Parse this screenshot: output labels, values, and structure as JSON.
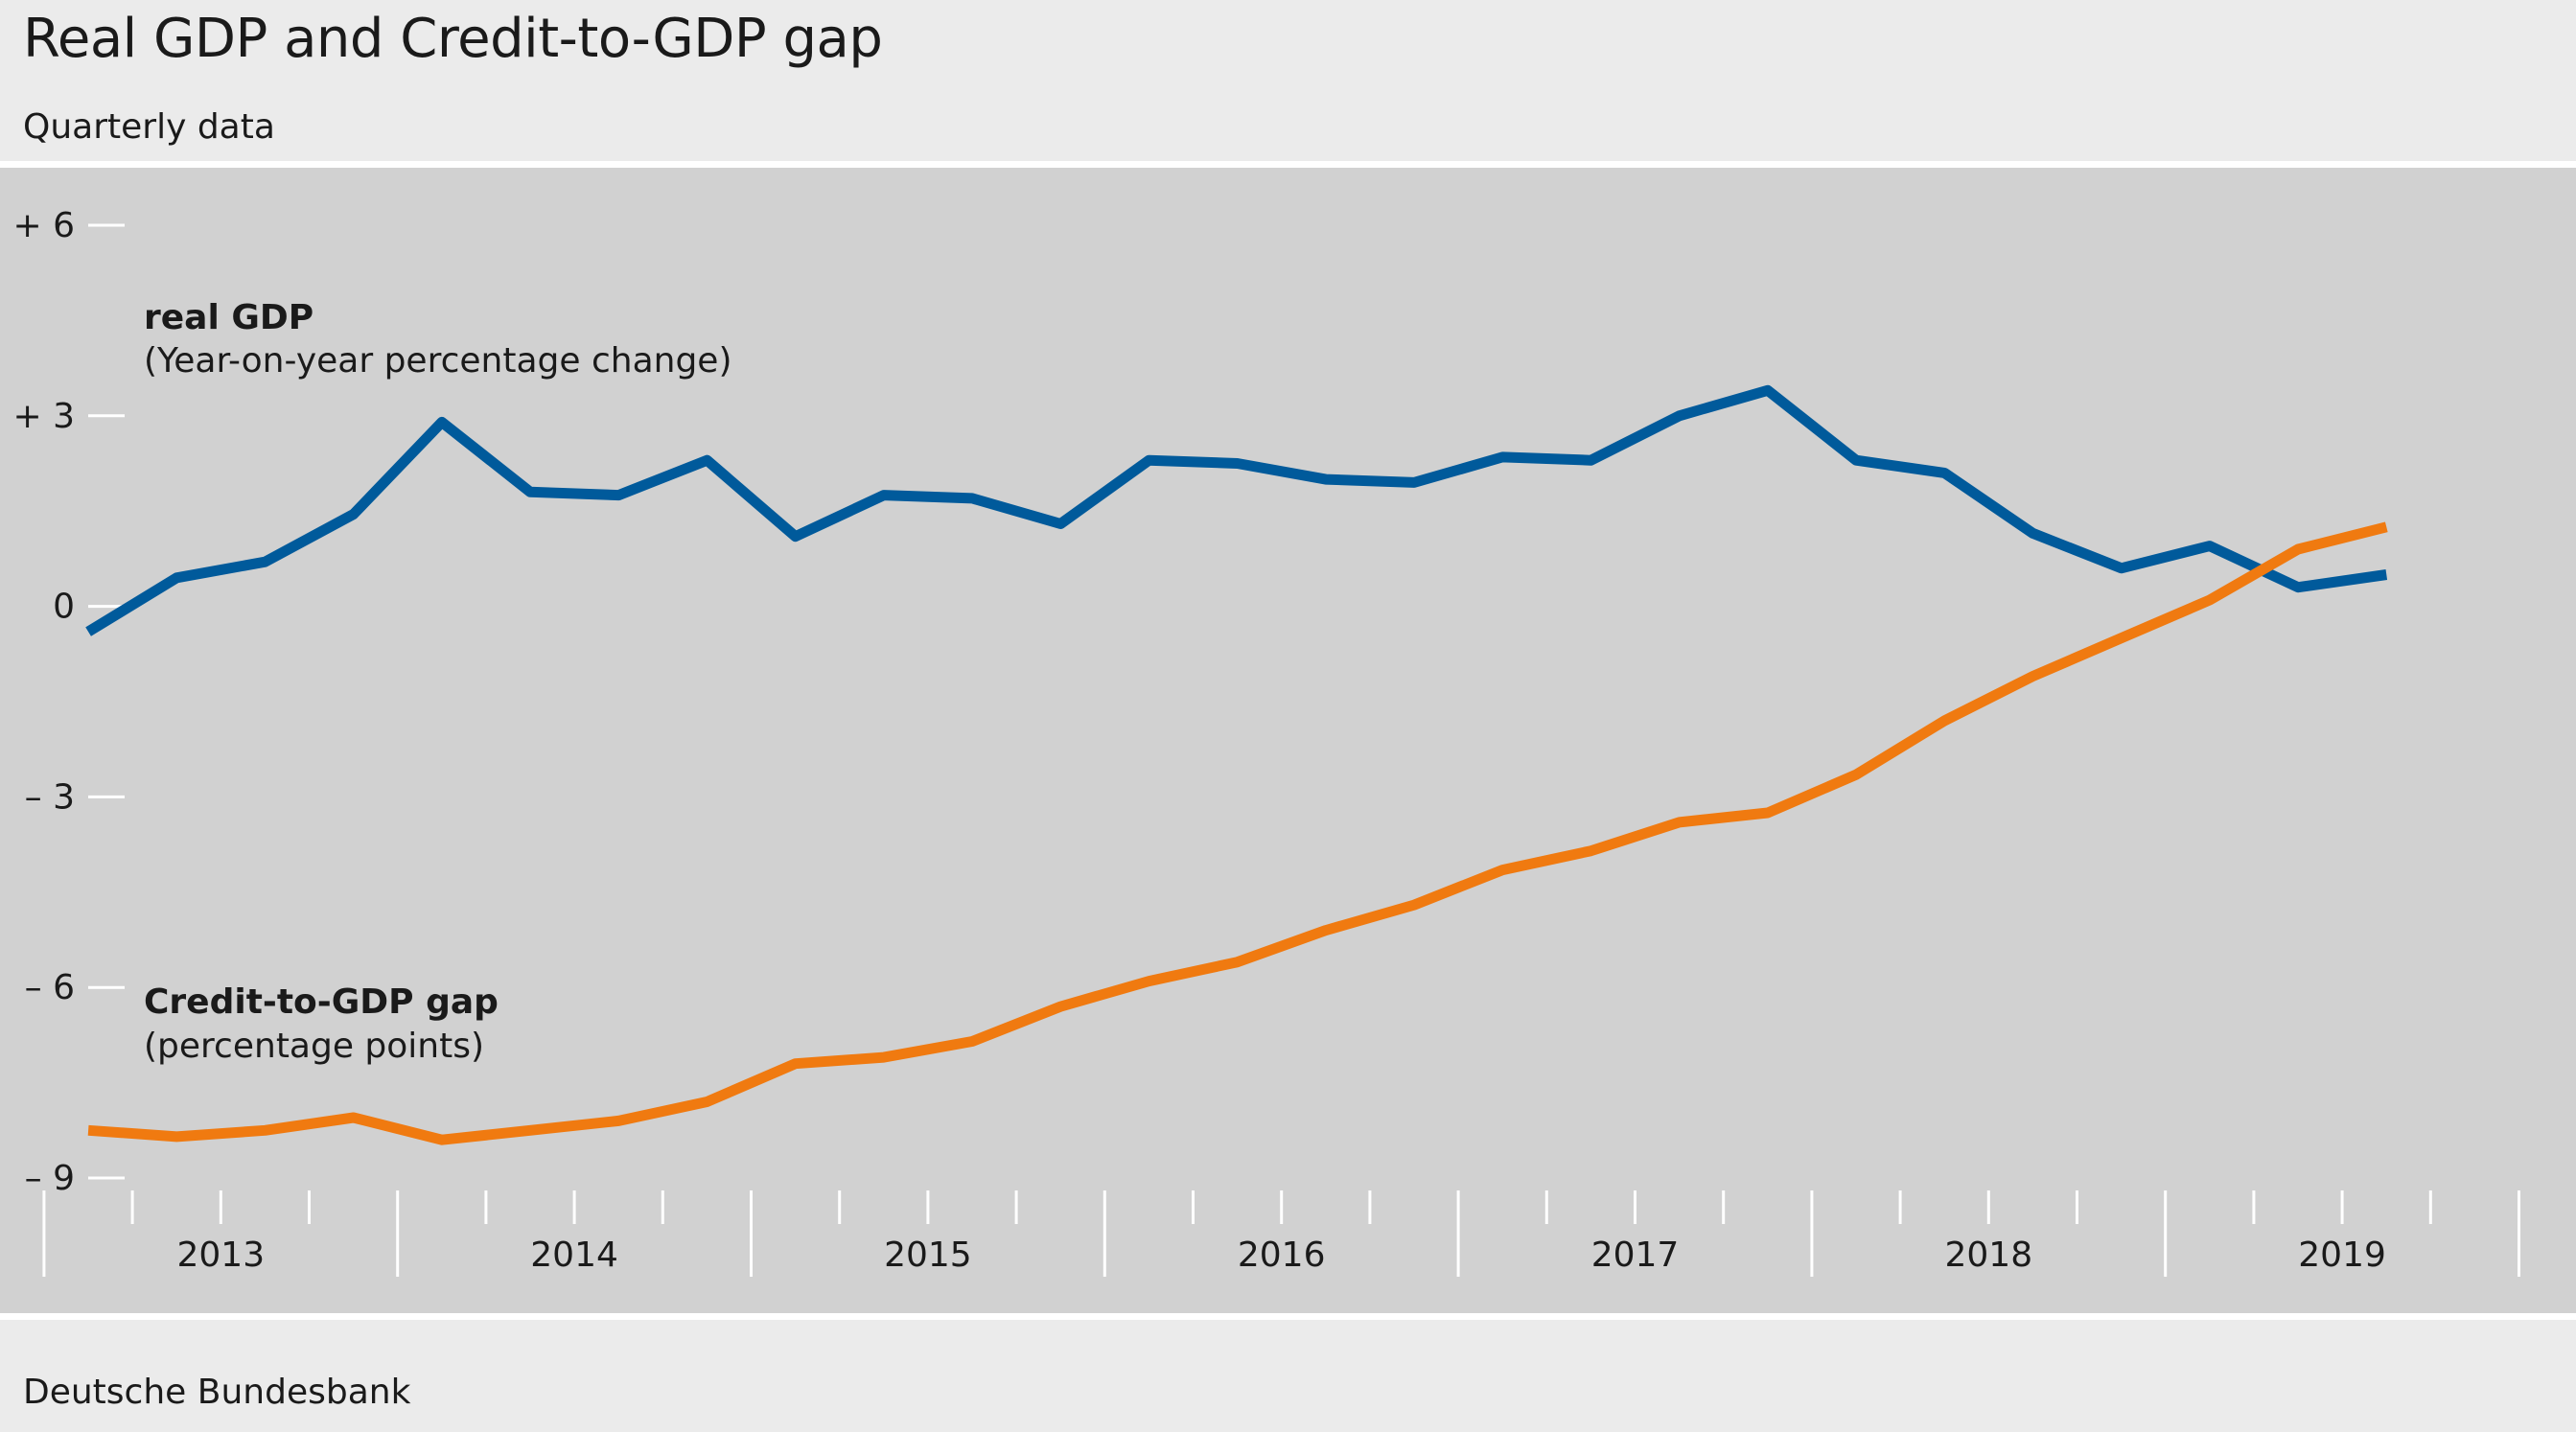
{
  "header": {
    "title": "Real GDP and Credit-to-GDP gap",
    "subtitle": "Quarterly data"
  },
  "footer": {
    "source": "Deutsche Bundesbank"
  },
  "colors": {
    "background": "#ebebeb",
    "plot_background": "#d1d1d1",
    "gdp_line": "#005a9b",
    "gap_line": "#f07a10",
    "tick": "#ffffff",
    "text": "#1a1a1a"
  },
  "chart_data": {
    "type": "line",
    "title": "Real GDP and Credit-to-GDP gap",
    "subtitle": "Quarterly data",
    "xlabel": "",
    "ylabel": "",
    "ylim": [
      -9,
      6
    ],
    "y_ticks": [
      {
        "value": 6,
        "label": "+ 6"
      },
      {
        "value": 3,
        "label": "+ 3"
      },
      {
        "value": 0,
        "label": "0"
      },
      {
        "value": -3,
        "label": "– 3"
      },
      {
        "value": -6,
        "label": "– 6"
      },
      {
        "value": -9,
        "label": "– 9"
      }
    ],
    "x_years": [
      "2013",
      "2014",
      "2015",
      "2016",
      "2017",
      "2018",
      "2019"
    ],
    "x_quarters": [
      "2013 Q1",
      "2013 Q2",
      "2013 Q3",
      "2013 Q4",
      "2014 Q1",
      "2014 Q2",
      "2014 Q3",
      "2014 Q4",
      "2015 Q1",
      "2015 Q2",
      "2015 Q3",
      "2015 Q4",
      "2016 Q1",
      "2016 Q2",
      "2016 Q3",
      "2016 Q4",
      "2017 Q1",
      "2017 Q2",
      "2017 Q3",
      "2017 Q4",
      "2018 Q1",
      "2018 Q2",
      "2018 Q3",
      "2018 Q4",
      "2019 Q1",
      "2019 Q2",
      "2019 Q3"
    ],
    "grid": false,
    "series": [
      {
        "key": "gdp",
        "name": "real GDP",
        "unit": "(Year-on-year percentage change)",
        "color": "#005a9b",
        "values": [
          -0.4,
          0.45,
          0.7,
          1.45,
          2.9,
          1.8,
          1.75,
          2.3,
          1.1,
          1.75,
          1.7,
          1.3,
          2.3,
          2.25,
          2.0,
          1.95,
          2.35,
          2.3,
          3.0,
          3.4,
          2.3,
          2.1,
          1.15,
          0.6,
          0.95,
          0.3,
          0.5
        ]
      },
      {
        "key": "gap",
        "name": "Credit-to-GDP gap",
        "unit": "(percentage points)",
        "color": "#f07a10",
        "values": [
          -8.25,
          -8.35,
          -8.25,
          -8.05,
          -8.4,
          -8.25,
          -8.1,
          -7.8,
          -7.2,
          -7.1,
          -6.85,
          -6.3,
          -5.9,
          -5.6,
          -5.1,
          -4.7,
          -4.15,
          -3.85,
          -3.4,
          -3.25,
          -2.65,
          -1.8,
          -1.1,
          -0.5,
          0.1,
          0.9,
          1.25
        ]
      }
    ]
  }
}
